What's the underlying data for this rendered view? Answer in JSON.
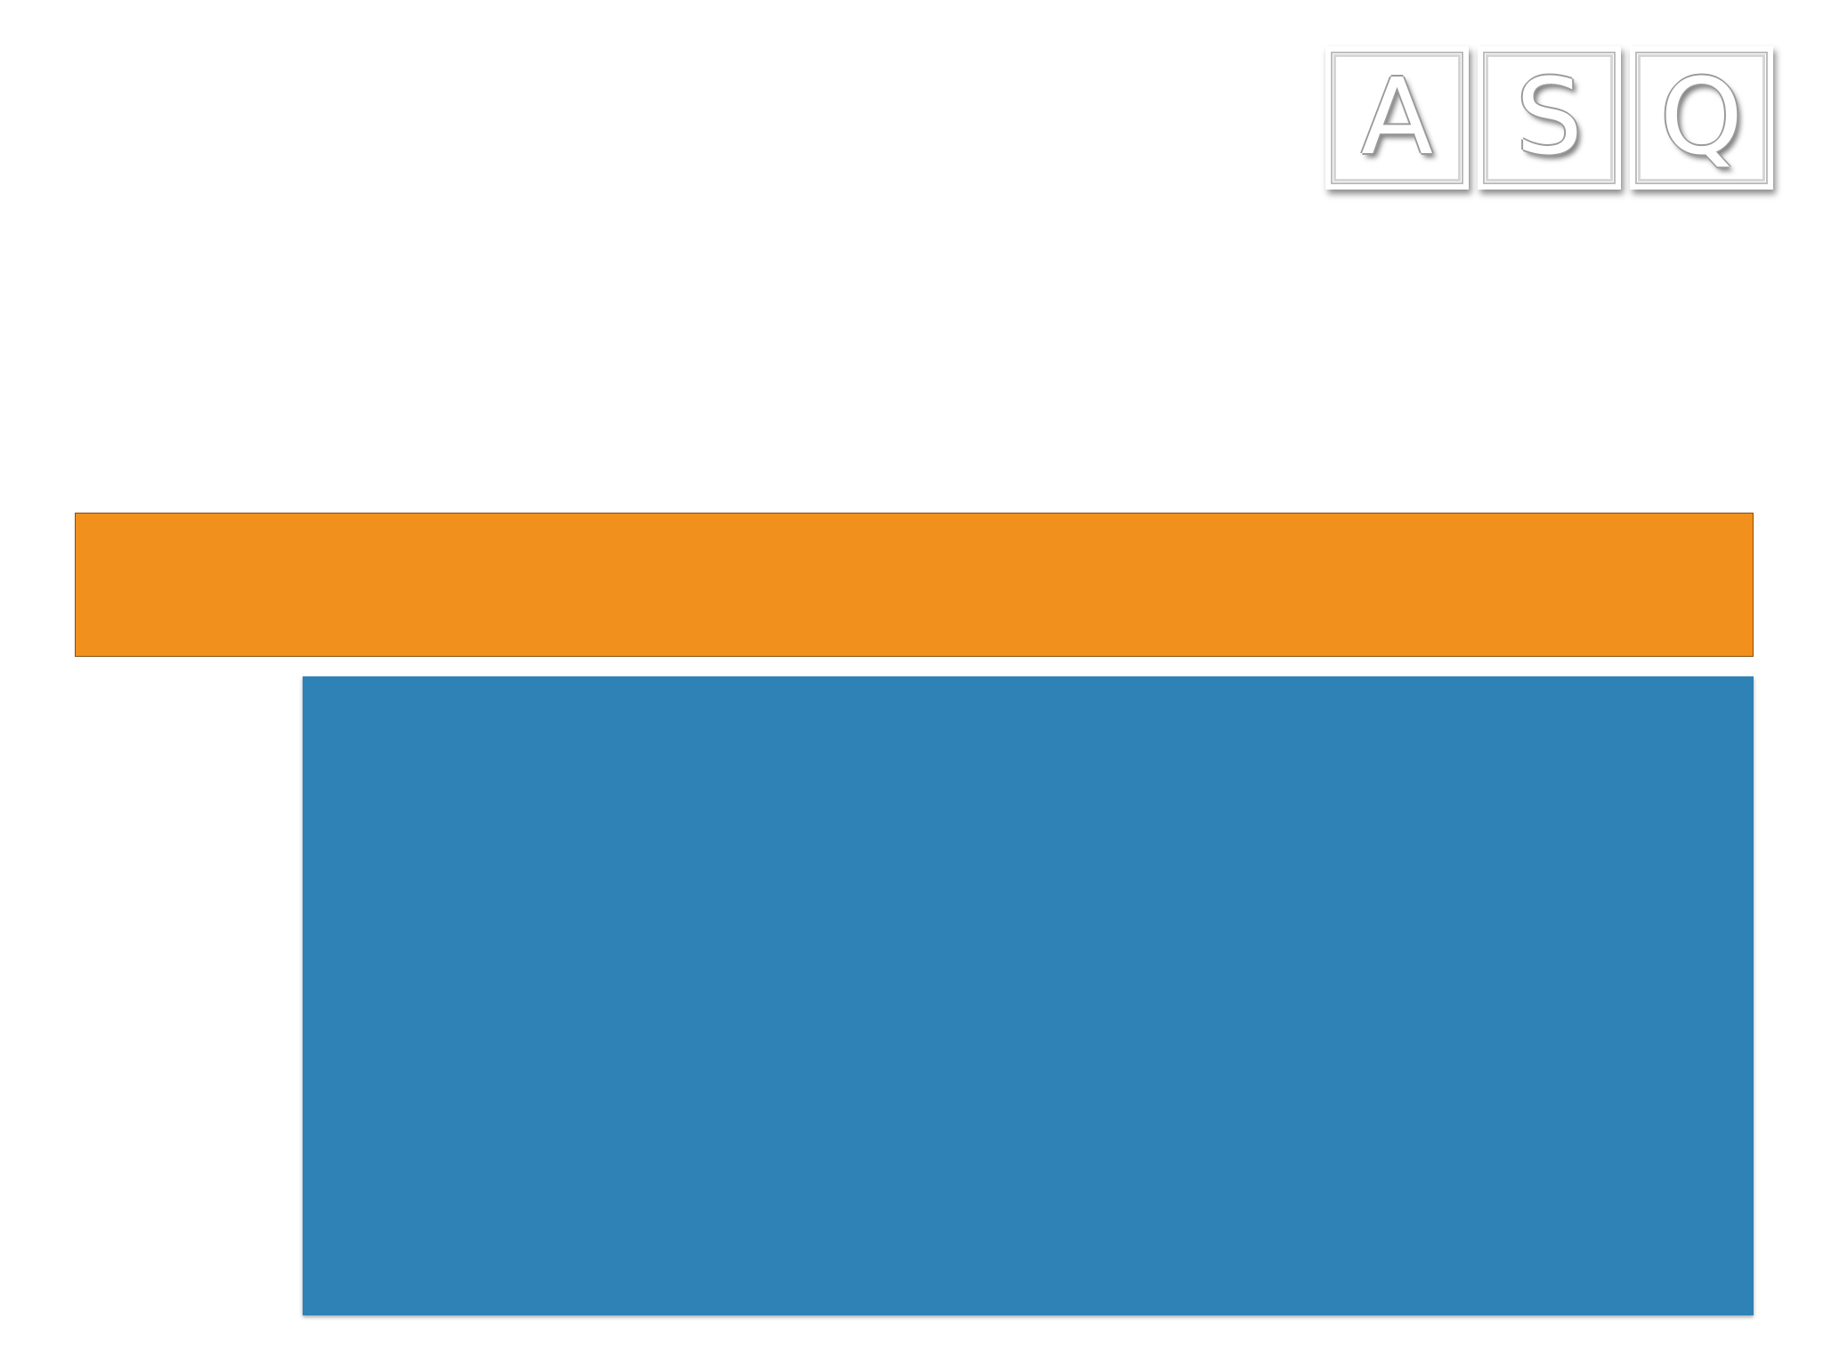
{
  "logo": {
    "letters": [
      "A",
      "S",
      "Q"
    ]
  },
  "colors": {
    "orange_bar": "#f2901d",
    "blue_panel": "#2e82b5",
    "background": "#ffffff"
  }
}
